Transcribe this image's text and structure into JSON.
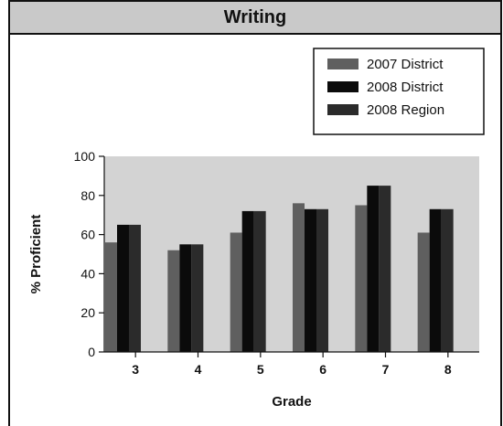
{
  "chart_data": {
    "type": "bar",
    "title": "Writing",
    "xlabel": "Grade",
    "ylabel": "% Proficient",
    "ylim": [
      0,
      100
    ],
    "yticks": [
      0,
      20,
      40,
      60,
      80,
      100
    ],
    "categories": [
      "3",
      "4",
      "5",
      "6",
      "7",
      "8"
    ],
    "series": [
      {
        "name": "2007 District",
        "color": "#5f5f5f",
        "values": [
          56,
          52,
          61,
          76,
          75,
          61
        ]
      },
      {
        "name": "2008 District",
        "color": "#0b0b0b",
        "values": [
          65,
          55,
          72,
          73,
          85,
          73
        ]
      },
      {
        "name": "2008 Region",
        "color": "#2b2b2b",
        "values": [
          65,
          55,
          72,
          73,
          85,
          73
        ]
      }
    ],
    "grid": false,
    "legend_position": "top-right",
    "plot_background": "#d3d3d3"
  }
}
